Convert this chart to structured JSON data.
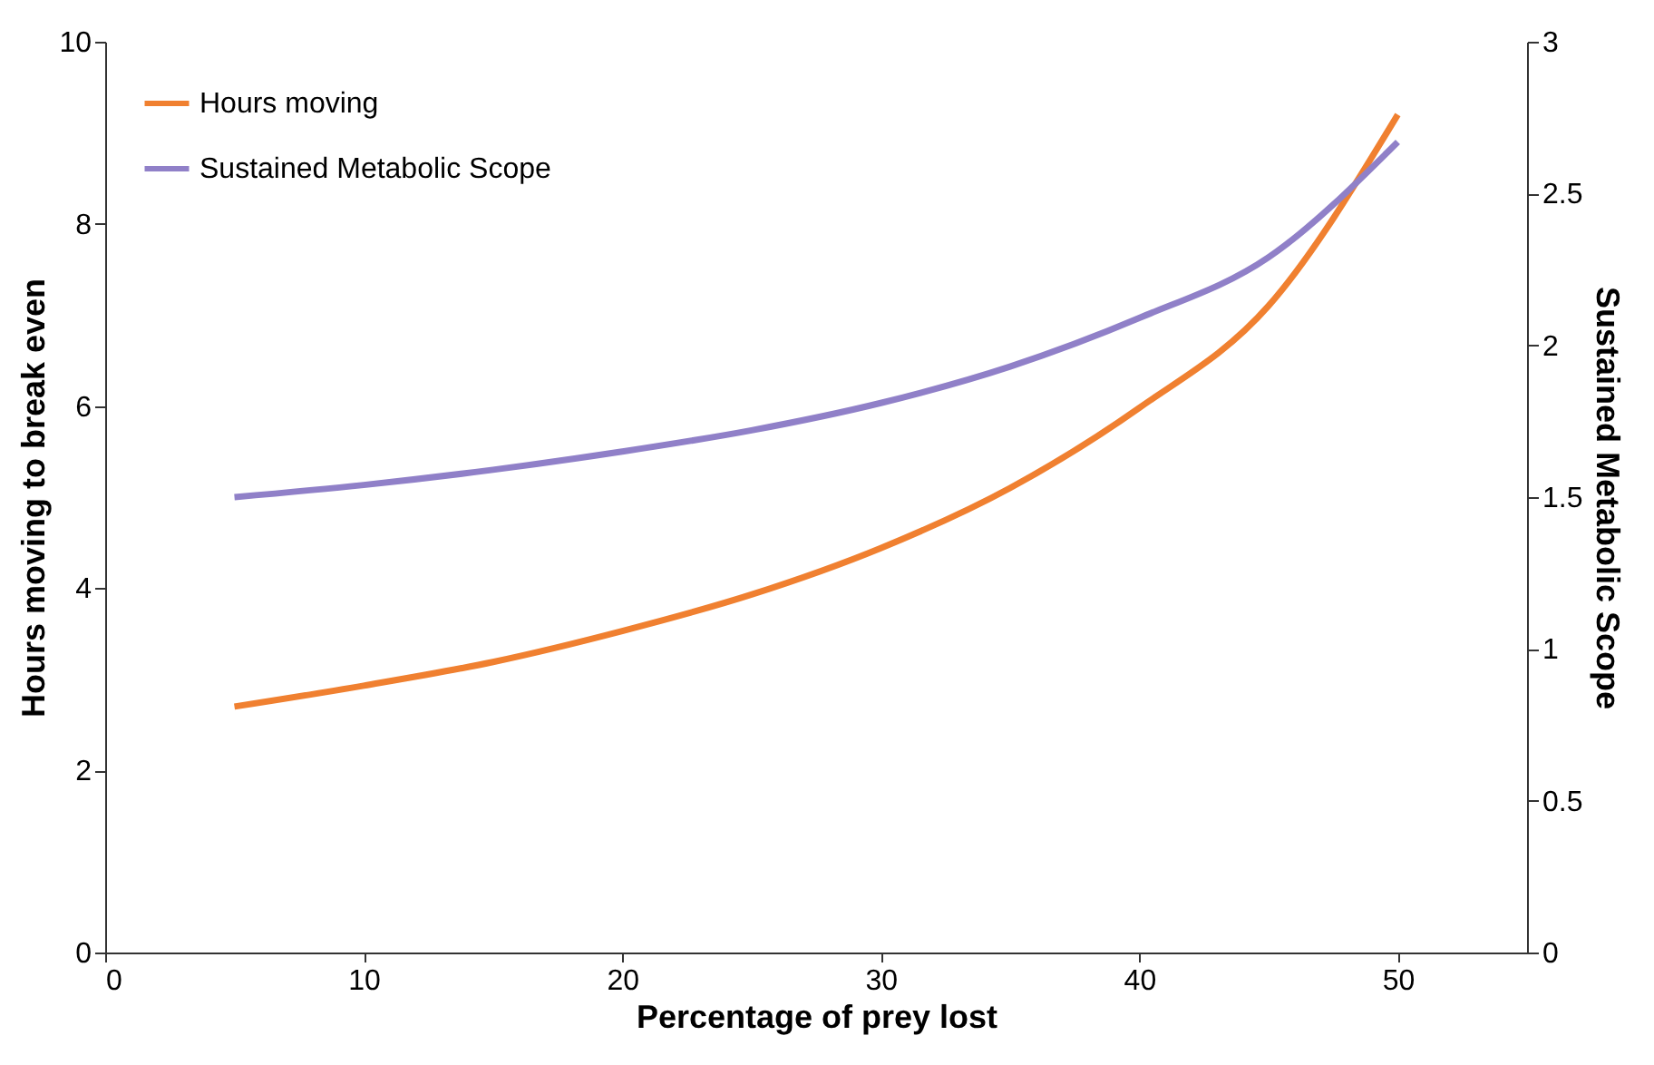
{
  "chart_data": {
    "type": "line",
    "xlabel": "Percentage of prey lost",
    "ylabel": "Hours moving to break even",
    "y2label": "Sustained Metabolic Scope",
    "x": [
      5,
      10,
      15,
      20,
      25,
      30,
      35,
      40,
      45,
      50
    ],
    "series": [
      {
        "name": "Hours moving",
        "color": "#f08030",
        "values": [
          2.7,
          2.93,
          3.19,
          3.53,
          3.93,
          4.44,
          5.1,
          5.98,
          7.1,
          9.2
        ]
      },
      {
        "name": "Sustained Metabolic Scope",
        "color": "#9080c8",
        "axis": "y2",
        "values": [
          1.5,
          1.54,
          1.59,
          1.65,
          1.72,
          1.81,
          1.93,
          2.09,
          2.29,
          2.67
        ]
      }
    ],
    "xlim": [
      0,
      55
    ],
    "xticks": [
      0,
      10,
      20,
      30,
      40,
      50
    ],
    "ylim": [
      0,
      10
    ],
    "yticks": [
      0,
      2,
      4,
      6,
      8,
      10
    ],
    "y2lim": [
      0,
      3
    ],
    "y2ticks": [
      0,
      0.5,
      1,
      1.5,
      2,
      2.5,
      3
    ],
    "legend": "top left"
  }
}
